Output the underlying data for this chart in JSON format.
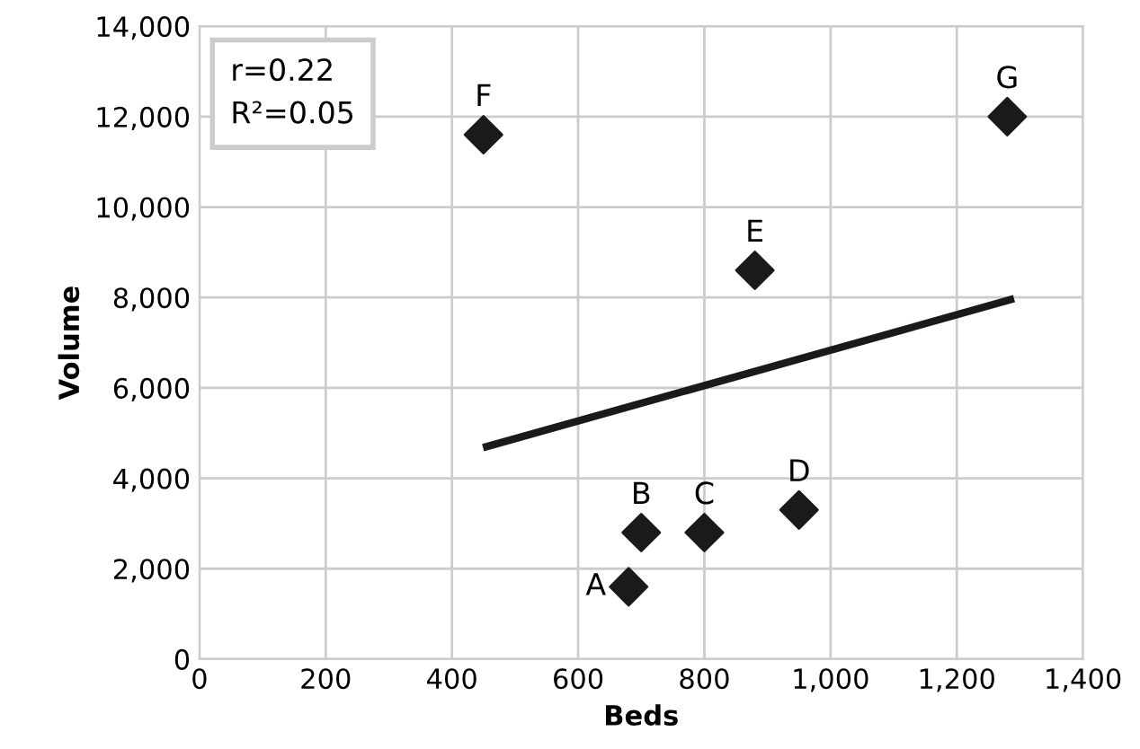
{
  "chart_data": {
    "type": "scatter",
    "xlabel": "Beds",
    "ylabel": "Volume",
    "xlim": [
      0,
      1400
    ],
    "xticks": [
      0,
      200,
      400,
      600,
      800,
      {
        "value": 1000,
        "label": "1,000"
      },
      {
        "value": 1200,
        "label": "1,200"
      },
      {
        "value": 1400,
        "label": "1,400"
      }
    ],
    "ylim": [
      0,
      14000
    ],
    "yticks": [
      0,
      {
        "value": 2000,
        "label": "2,000"
      },
      {
        "value": 4000,
        "label": "4,000"
      },
      {
        "value": 6000,
        "label": "6,000"
      },
      {
        "value": 8000,
        "label": "8,000"
      },
      {
        "value": 10000,
        "label": "10,000"
      },
      {
        "value": 12000,
        "label": "12,000"
      },
      {
        "value": 14000,
        "label": "14,000"
      }
    ],
    "grid": true,
    "series": [
      {
        "marker": "diamond",
        "color": "#1a1a1a",
        "x": [
          680,
          700,
          800,
          950,
          880,
          450,
          1280
        ],
        "values": [
          1600,
          2800,
          2800,
          3300,
          8600,
          11600,
          12000
        ]
      },
      {
        "type": "line",
        "color": "#1a1a1a",
        "x": [
          455,
          1285
        ],
        "values": [
          4700,
          7950
        ]
      }
    ],
    "annotations": [
      "r=0.22\nR²=0.05",
      {
        "text": "A",
        "x": 680,
        "y": 1600
      },
      {
        "text": "B",
        "x": 700,
        "y": 2800
      },
      {
        "text": "C",
        "x": 800,
        "y": 2800
      },
      {
        "text": "D",
        "x": 950,
        "y": 3300
      },
      {
        "text": "E",
        "x": 880,
        "y": 8600
      },
      {
        "text": "F",
        "x": 450,
        "y": 11600
      },
      {
        "text": "G",
        "x": 1280,
        "y": 12000
      }
    ]
  }
}
